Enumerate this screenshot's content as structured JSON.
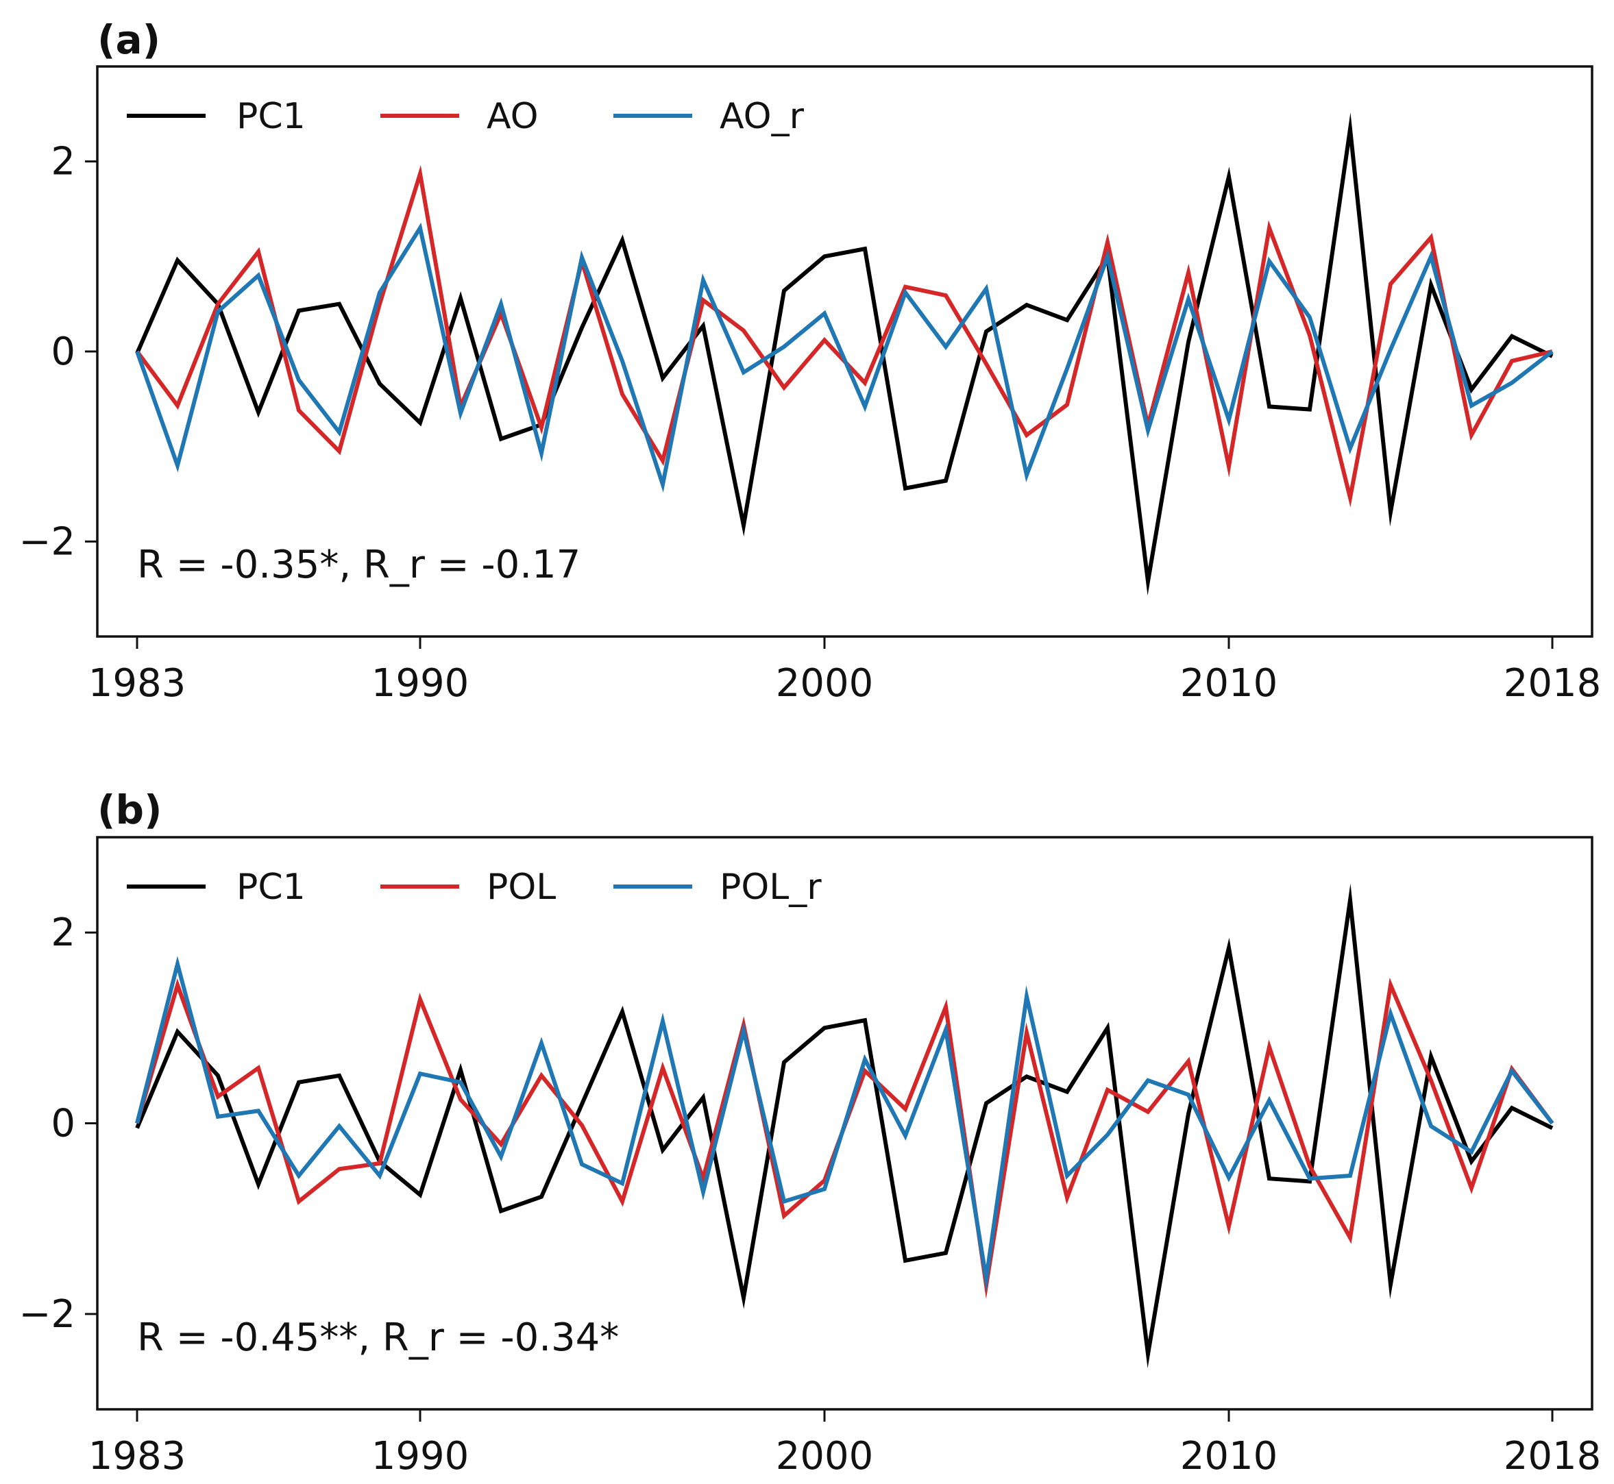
{
  "colors": {
    "pc1": "#000000",
    "red": "#d62728",
    "blue": "#1f77b4"
  },
  "chart_data": [
    {
      "type": "line",
      "panel_label": "(a)",
      "annotation": "R = -0.35*, R_r = -0.17",
      "xlim": [
        1983,
        2018
      ],
      "ylim": [
        -3,
        3
      ],
      "xticks": [
        1983,
        1990,
        2000,
        2010,
        2018
      ],
      "yticks": [
        -2,
        0,
        2
      ],
      "ytick_labels": [
        "−2",
        "0",
        "2"
      ],
      "legend_placement": "top-left",
      "x": [
        1983,
        1984,
        1985,
        1986,
        1987,
        1988,
        1989,
        1990,
        1991,
        1992,
        1993,
        1994,
        1995,
        1996,
        1997,
        1998,
        1999,
        2000,
        2001,
        2002,
        2003,
        2004,
        2005,
        2006,
        2007,
        2008,
        2009,
        2010,
        2011,
        2012,
        2013,
        2014,
        2015,
        2016,
        2017,
        2018
      ],
      "series": [
        {
          "name": "PC1",
          "color": "#000000",
          "values": [
            -0.02,
            0.96,
            0.5,
            -0.64,
            0.43,
            0.5,
            -0.34,
            -0.75,
            0.56,
            -0.92,
            -0.77,
            0.25,
            1.17,
            -0.28,
            0.27,
            -1.83,
            0.64,
            1.0,
            1.08,
            -1.44,
            -1.36,
            0.21,
            0.49,
            0.33,
            1.0,
            -2.42,
            0.1,
            1.84,
            -0.58,
            -0.61,
            2.34,
            -1.69,
            0.7,
            -0.4,
            0.16,
            -0.05
          ]
        },
        {
          "name": "AO",
          "color": "#d62728",
          "values": [
            0.0,
            -0.57,
            0.5,
            1.05,
            -0.62,
            -1.05,
            0.5,
            1.87,
            -0.58,
            0.4,
            -0.8,
            0.95,
            -0.45,
            -1.15,
            0.54,
            0.22,
            -0.38,
            0.12,
            -0.33,
            0.68,
            0.59,
            -0.13,
            -0.88,
            -0.56,
            1.15,
            -0.78,
            0.83,
            -1.21,
            1.3,
            0.17,
            -1.54,
            0.71,
            1.2,
            -0.88,
            -0.1,
            0.0
          ]
        },
        {
          "name": "AO_r",
          "color": "#1f77b4",
          "values": [
            0.0,
            -1.2,
            0.42,
            0.8,
            -0.3,
            -0.85,
            0.62,
            1.3,
            -0.65,
            0.5,
            -1.07,
            0.99,
            -0.1,
            -1.4,
            0.75,
            -0.22,
            0.05,
            0.4,
            -0.58,
            0.62,
            0.05,
            0.66,
            -1.3,
            -0.18,
            1.0,
            -0.83,
            0.55,
            -0.72,
            0.95,
            0.36,
            -1.02,
            0.02,
            1.0,
            -0.57,
            -0.33,
            0.0
          ]
        }
      ]
    },
    {
      "type": "line",
      "panel_label": "(b)",
      "annotation": "R = -0.45**, R_r = -0.34*",
      "xlim": [
        1983,
        2018
      ],
      "ylim": [
        -3,
        3
      ],
      "xticks": [
        1983,
        1990,
        2000,
        2010,
        2018
      ],
      "yticks": [
        -2,
        0,
        2
      ],
      "ytick_labels": [
        "−2",
        "0",
        "2"
      ],
      "legend_placement": "top-left",
      "x": [
        1983,
        1984,
        1985,
        1986,
        1987,
        1988,
        1989,
        1990,
        1991,
        1992,
        1993,
        1994,
        1995,
        1996,
        1997,
        1998,
        1999,
        2000,
        2001,
        2002,
        2003,
        2004,
        2005,
        2006,
        2007,
        2008,
        2009,
        2010,
        2011,
        2012,
        2013,
        2014,
        2015,
        2016,
        2017,
        2018
      ],
      "series": [
        {
          "name": "PC1",
          "color": "#000000",
          "values": [
            -0.05,
            0.96,
            0.5,
            -0.64,
            0.43,
            0.5,
            -0.4,
            -0.75,
            0.56,
            -0.92,
            -0.77,
            0.2,
            1.17,
            -0.28,
            0.27,
            -1.83,
            0.64,
            1.0,
            1.08,
            -1.44,
            -1.36,
            0.21,
            0.49,
            0.33,
            1.0,
            -2.42,
            0.1,
            1.84,
            -0.58,
            -0.61,
            2.34,
            -1.69,
            0.7,
            -0.4,
            0.16,
            -0.05
          ]
        },
        {
          "name": "POL",
          "color": "#d62728",
          "values": [
            0.0,
            1.45,
            0.28,
            0.58,
            -0.82,
            -0.48,
            -0.42,
            1.3,
            0.25,
            -0.22,
            0.5,
            -0.02,
            -0.82,
            0.58,
            -0.58,
            1.03,
            -0.97,
            -0.6,
            0.55,
            0.15,
            1.22,
            -1.7,
            0.95,
            -0.78,
            0.35,
            0.12,
            0.65,
            -1.08,
            0.8,
            -0.45,
            -1.2,
            1.45,
            0.45,
            -0.68,
            0.57,
            0.0
          ]
        },
        {
          "name": "POL_r",
          "color": "#1f77b4",
          "values": [
            0.0,
            1.67,
            0.07,
            0.13,
            -0.55,
            -0.03,
            -0.55,
            0.52,
            0.43,
            -0.35,
            0.84,
            -0.43,
            -0.63,
            1.07,
            -0.72,
            0.97,
            -0.82,
            -0.69,
            0.67,
            -0.13,
            0.98,
            -1.63,
            1.33,
            -0.55,
            -0.12,
            0.45,
            0.3,
            -0.57,
            0.24,
            -0.58,
            -0.55,
            1.15,
            -0.03,
            -0.3,
            0.55,
            0.0
          ]
        }
      ]
    }
  ]
}
